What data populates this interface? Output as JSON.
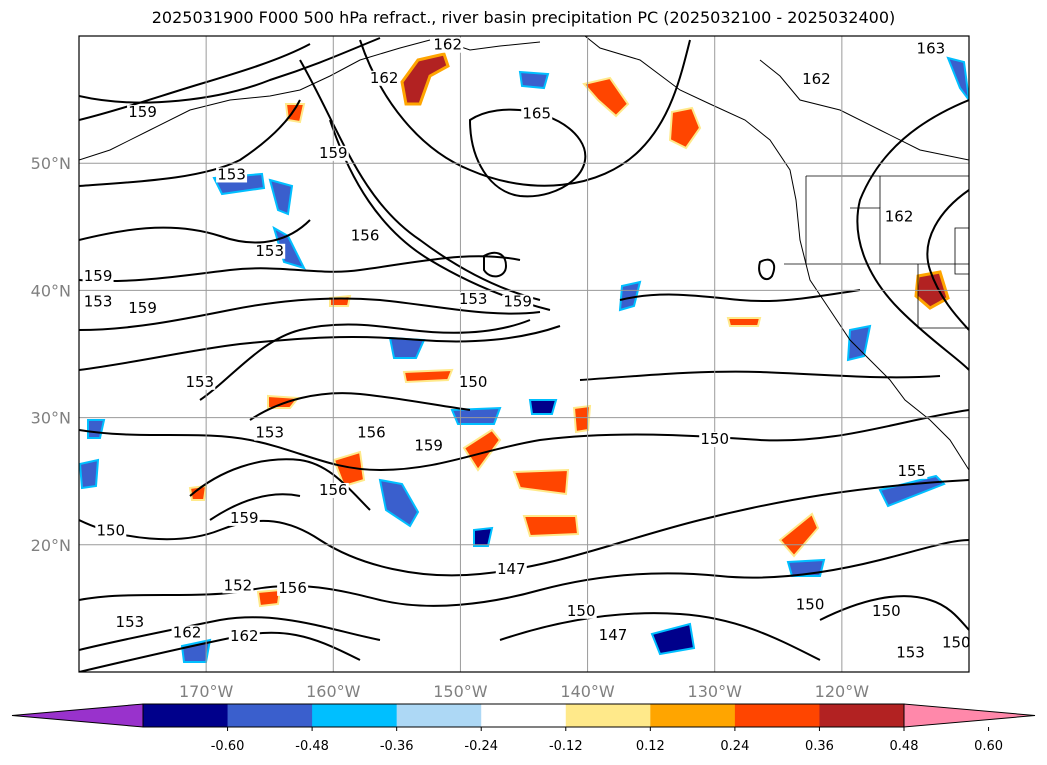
{
  "title": "2025031900 F000 500 hPa refract., river basin precipitation PC (2025032100 - 2025032400)",
  "map": {
    "lon_range": [
      -180,
      -110
    ],
    "lat_range": [
      10,
      60
    ],
    "lat_ticks": [
      {
        "value": 50,
        "label": "50°N"
      },
      {
        "value": 40,
        "label": "40°N"
      },
      {
        "value": 30,
        "label": "30°N"
      },
      {
        "value": 20,
        "label": "20°N"
      }
    ],
    "lon_ticks": [
      {
        "value": -170,
        "label": "170°W"
      },
      {
        "value": -160,
        "label": "160°W"
      },
      {
        "value": -150,
        "label": "150°W"
      },
      {
        "value": -140,
        "label": "140°W"
      },
      {
        "value": -130,
        "label": "130°W"
      },
      {
        "value": -120,
        "label": "120°W"
      }
    ],
    "contour_labels": [
      {
        "text": "162",
        "lon": -151,
        "lat": 59
      },
      {
        "text": "163",
        "lon": -113,
        "lat": 58.7
      },
      {
        "text": "162",
        "lon": -156,
        "lat": 56.4
      },
      {
        "text": "162",
        "lon": -122,
        "lat": 56.3
      },
      {
        "text": "159",
        "lon": -175,
        "lat": 53.7
      },
      {
        "text": "165",
        "lon": -144,
        "lat": 53.6
      },
      {
        "text": "159",
        "lon": -160,
        "lat": 50.5
      },
      {
        "text": "153",
        "lon": -168,
        "lat": 48.8
      },
      {
        "text": "162",
        "lon": -115.5,
        "lat": 45.5
      },
      {
        "text": "156",
        "lon": -157.5,
        "lat": 44
      },
      {
        "text": "153",
        "lon": -165,
        "lat": 42.8
      },
      {
        "text": "159",
        "lon": -178.5,
        "lat": 40.8
      },
      {
        "text": "153",
        "lon": -178.5,
        "lat": 38.8
      },
      {
        "text": "159",
        "lon": -175,
        "lat": 38.3
      },
      {
        "text": "153",
        "lon": -149,
        "lat": 39
      },
      {
        "text": "159",
        "lon": -145.5,
        "lat": 38.8
      },
      {
        "text": "153",
        "lon": -170.5,
        "lat": 32.5
      },
      {
        "text": "150",
        "lon": -149,
        "lat": 32.5
      },
      {
        "text": "153",
        "lon": -165,
        "lat": 28.5
      },
      {
        "text": "156",
        "lon": -157,
        "lat": 28.5
      },
      {
        "text": "159",
        "lon": -152.5,
        "lat": 27.5
      },
      {
        "text": "150",
        "lon": -130,
        "lat": 28
      },
      {
        "text": "155",
        "lon": -114.5,
        "lat": 25.5
      },
      {
        "text": "156",
        "lon": -160,
        "lat": 24
      },
      {
        "text": "159",
        "lon": -167,
        "lat": 21.8
      },
      {
        "text": "150",
        "lon": -177.5,
        "lat": 20.8
      },
      {
        "text": "147",
        "lon": -146,
        "lat": 17.8
      },
      {
        "text": "152",
        "lon": -167.5,
        "lat": 16.5
      },
      {
        "text": "156",
        "lon": -163.2,
        "lat": 16.3
      },
      {
        "text": "150",
        "lon": -122.5,
        "lat": 15
      },
      {
        "text": "150",
        "lon": -116.5,
        "lat": 14.5
      },
      {
        "text": "150",
        "lon": -140.5,
        "lat": 14.5
      },
      {
        "text": "153",
        "lon": -176,
        "lat": 13.6
      },
      {
        "text": "162",
        "lon": -171.5,
        "lat": 12.8
      },
      {
        "text": "162",
        "lon": -167,
        "lat": 12.5
      },
      {
        "text": "147",
        "lon": -138,
        "lat": 12.6
      },
      {
        "text": "153",
        "lon": -114.6,
        "lat": 11.2
      },
      {
        "text": "150",
        "lon": -111,
        "lat": 12
      }
    ]
  },
  "colorbar": {
    "ticks": [
      "-0.60",
      "-0.48",
      "-0.36",
      "-0.24",
      "-0.12",
      "0.12",
      "0.24",
      "0.36",
      "0.48",
      "0.60"
    ],
    "under_color": "#9932cc",
    "over_color": "#ff88aa",
    "colors": [
      "#00008b",
      "#3a5fcd",
      "#00bfff",
      "#add8f5",
      "#ffffff",
      "#ffe98a",
      "#ffa500",
      "#ff4500",
      "#b22222"
    ]
  }
}
